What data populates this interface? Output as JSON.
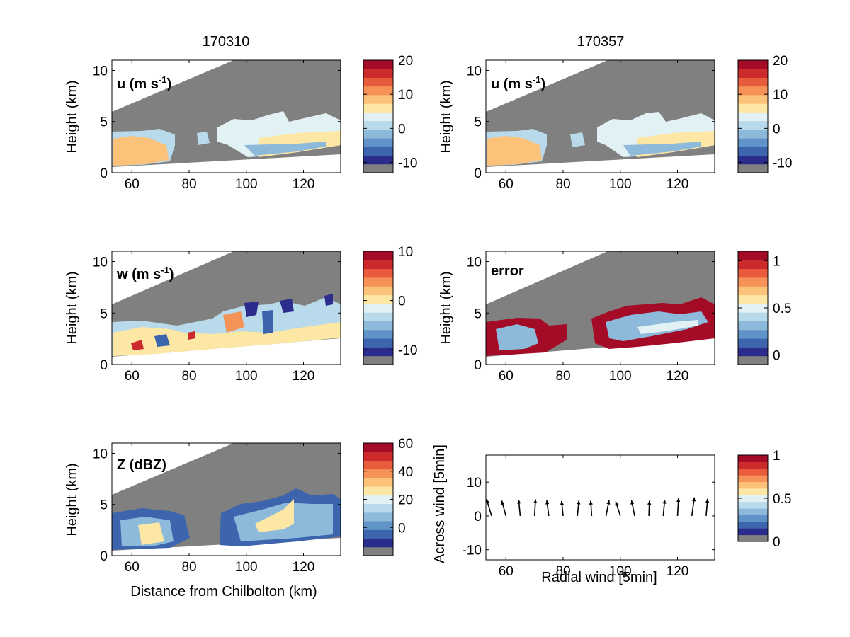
{
  "colors": {
    "gray": "#808080",
    "scale": [
      "#2b2c8c",
      "#3c65ad",
      "#6093c8",
      "#8db9da",
      "#b8daea",
      "#e2f1f3",
      "#fde7a4",
      "#fcc27a",
      "#f59257",
      "#e95b3d",
      "#cc2a2c",
      "#a30b26"
    ]
  },
  "panels": {
    "p1": {
      "column_title": "170310",
      "label": "u (m s",
      "label_sup": "-1",
      "label_end": ")",
      "ylabel": "Height (km)",
      "xlabel": "",
      "yticks": [
        "0",
        "5",
        "10"
      ],
      "xticks": [
        "60",
        "80",
        "100",
        "120"
      ],
      "cbar_ticks": [
        "-10",
        "0",
        "10",
        "20"
      ]
    },
    "p2": {
      "column_title": "170357",
      "label": "u (m s",
      "label_sup": "-1",
      "label_end": ")",
      "ylabel": "Height (km)",
      "xlabel": "",
      "yticks": [
        "0",
        "5",
        "10"
      ],
      "xticks": [
        "60",
        "80",
        "100",
        "120"
      ],
      "cbar_ticks": [
        "-10",
        "0",
        "10",
        "20"
      ]
    },
    "p3": {
      "label": "w (m s",
      "label_sup": "-1",
      "label_end": ")",
      "ylabel": "Height (km)",
      "xlabel": "",
      "yticks": [
        "0",
        "5",
        "10"
      ],
      "xticks": [
        "60",
        "80",
        "100",
        "120"
      ],
      "cbar_ticks": [
        "-10",
        "0",
        "10"
      ]
    },
    "p4": {
      "label": "error",
      "ylabel": "Height (km)",
      "xlabel": "",
      "yticks": [
        "0",
        "5",
        "10"
      ],
      "xticks": [
        "60",
        "80",
        "100",
        "120"
      ],
      "cbar_ticks": [
        "0",
        "0.5",
        "1"
      ]
    },
    "p5": {
      "label": "Z (dBZ)",
      "ylabel": "Height (km)",
      "xlabel": "Distance from Chilbolton (km)",
      "yticks": [
        "0",
        "5",
        "10"
      ],
      "xticks": [
        "60",
        "80",
        "100",
        "120"
      ],
      "cbar_ticks": [
        "0",
        "20",
        "40",
        "60"
      ]
    },
    "p6": {
      "ylabel": "Across wind [5min]",
      "xlabel": "Radial wind [5min]",
      "yticks": [
        "-10",
        "0",
        "10"
      ],
      "xticks": [
        "60",
        "80",
        "100",
        "120"
      ],
      "cbar_ticks": [
        "0",
        "0.5",
        "1"
      ]
    }
  },
  "chart_data": [
    {
      "type": "heatmap",
      "panel": "u (m s-1)",
      "time": "170310",
      "x_range": [
        53,
        133
      ],
      "y_range": [
        0,
        11
      ],
      "colorbar": [
        -13,
        20
      ],
      "echo_regions": [
        {
          "x": [
            53,
            75
          ],
          "y": [
            0.9,
            4.0
          ]
        },
        {
          "x": [
            84,
            87
          ],
          "y": [
            2.6,
            3.4
          ]
        },
        {
          "x": [
            92,
            133
          ],
          "y": [
            1.5,
            5.7
          ]
        }
      ]
    },
    {
      "type": "heatmap",
      "panel": "u (m s-1)",
      "time": "170357",
      "x_range": [
        53,
        133
      ],
      "y_range": [
        0,
        11
      ],
      "colorbar": [
        -13,
        20
      ],
      "echo_regions": [
        {
          "x": [
            53,
            75
          ],
          "y": [
            0.9,
            4.0
          ]
        },
        {
          "x": [
            82,
            86
          ],
          "y": [
            2.6,
            3.5
          ]
        },
        {
          "x": [
            92,
            133
          ],
          "y": [
            1.5,
            5.5
          ]
        }
      ]
    },
    {
      "type": "heatmap",
      "panel": "w (m s-1)",
      "x_range": [
        53,
        133
      ],
      "y_range": [
        0,
        11
      ],
      "colorbar": [
        -13,
        10
      ],
      "echo_regions": [
        {
          "x": [
            53,
            133
          ],
          "y": [
            0.7,
            6.5
          ]
        }
      ]
    },
    {
      "type": "heatmap",
      "panel": "error",
      "x_range": [
        53,
        133
      ],
      "y_range": [
        0,
        11
      ],
      "colorbar": [
        -0.1,
        1.1
      ],
      "echo_regions": [
        {
          "x": [
            53,
            133
          ],
          "y": [
            0.7,
            6.5
          ]
        }
      ]
    },
    {
      "type": "heatmap",
      "panel": "Z (dBZ)",
      "x_range": [
        53,
        133
      ],
      "y_range": [
        0,
        11
      ],
      "colorbar": [
        -20,
        60
      ],
      "echo_regions": [
        {
          "x": [
            53,
            77
          ],
          "y": [
            0.9,
            4.8
          ]
        },
        {
          "x": [
            89,
            120
          ],
          "y": [
            1.4,
            6.0
          ]
        }
      ]
    },
    {
      "type": "quiver",
      "panel": "wind",
      "xlabel": "Radial wind [5min]",
      "ylabel": "Across wind [5min]",
      "x_range": [
        53,
        133
      ],
      "y_range": [
        -13,
        18
      ],
      "colorbar": [
        0,
        1
      ],
      "x": [
        55,
        60,
        65,
        70,
        75,
        80,
        85,
        90,
        95,
        100,
        105,
        110,
        115,
        120,
        125,
        130
      ],
      "u": [
        -1.0,
        -0.8,
        -0.3,
        0.2,
        -0.4,
        -0.3,
        0.3,
        -0.2,
        0.6,
        -0.9,
        -0.6,
        0.1,
        0.3,
        0.2,
        0.5,
        0.3
      ],
      "v": [
        5.0,
        4.5,
        4.8,
        4.9,
        4.6,
        4.4,
        4.6,
        4.5,
        4.6,
        4.3,
        4.6,
        4.5,
        4.8,
        5.3,
        5.5,
        5.1
      ]
    }
  ]
}
